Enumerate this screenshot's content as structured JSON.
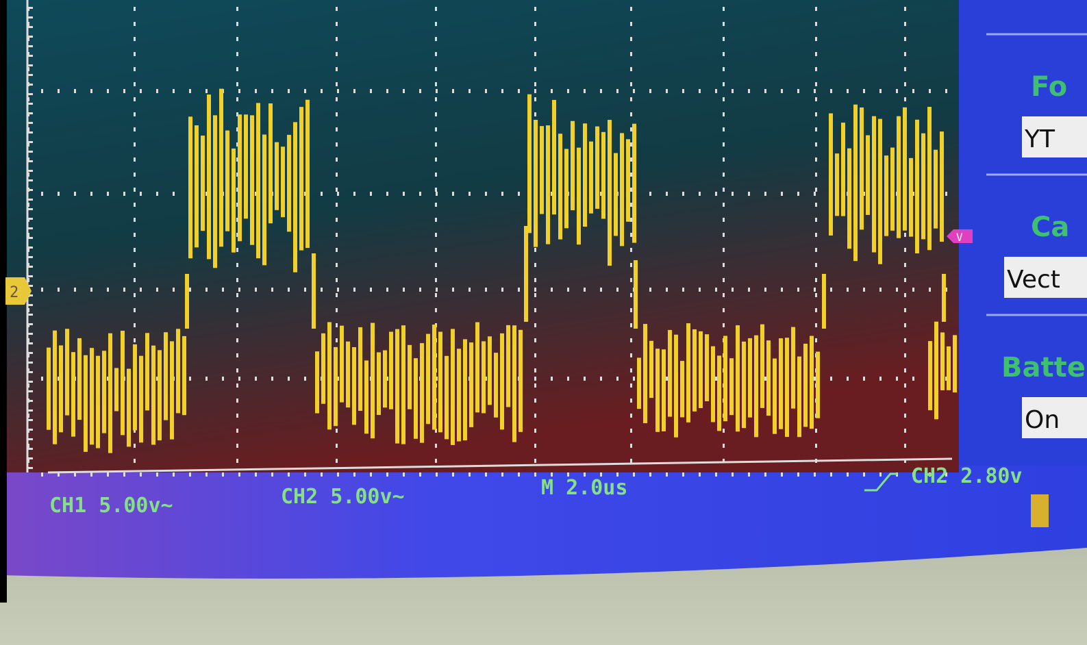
{
  "status_bar": {
    "ch1": "CH1 5.00v~",
    "ch2": "CH2 5.00v~",
    "timebase": "M 2.0us",
    "trigger": "CH2 2.80v"
  },
  "channel_marker": "2",
  "trigger_marker": "V",
  "side_menu": [
    {
      "label": "Fo",
      "value": "YT"
    },
    {
      "label": "Ca",
      "value": "Vect"
    },
    {
      "label": "Batte",
      "value": "On"
    }
  ]
}
